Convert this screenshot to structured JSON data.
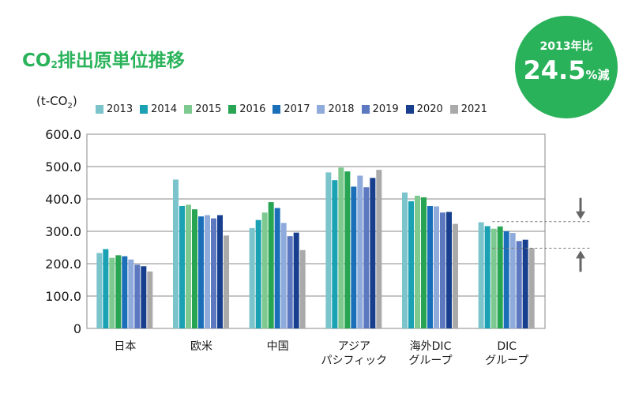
{
  "title": {
    "prefix": "CO",
    "sub": "2",
    "suffix": "排出原単位推移"
  },
  "badge": {
    "top": "2013年比",
    "value": "24.5",
    "suffix": "%減"
  },
  "unit_label": {
    "prefix": "(t-CO",
    "sub": "2",
    "suffix": ")"
  },
  "colors": {
    "2013": "#7cc4cc",
    "2014": "#1aa1b4",
    "2015": "#7dc98f",
    "2016": "#27a553",
    "2017": "#1a6fb8",
    "2018": "#8fabdc",
    "2019": "#5c78c0",
    "2020": "#173f8e",
    "2021": "#aaaaaa",
    "accent": "#2bb35b",
    "arrow": "#666666"
  },
  "chart_data": {
    "type": "bar",
    "categories": [
      [
        "日本"
      ],
      [
        "欧米"
      ],
      [
        "中国"
      ],
      [
        "アジア",
        "パシフィック"
      ],
      [
        "海外DIC",
        "グループ"
      ],
      [
        "DIC",
        "グループ"
      ]
    ],
    "series": [
      {
        "name": "2013",
        "values": [
          233,
          460,
          310,
          482,
          420,
          328
        ]
      },
      {
        "name": "2014",
        "values": [
          245,
          378,
          335,
          458,
          393,
          316
        ]
      },
      {
        "name": "2015",
        "values": [
          218,
          382,
          358,
          497,
          410,
          308
        ]
      },
      {
        "name": "2016",
        "values": [
          226,
          368,
          390,
          485,
          405,
          315
        ]
      },
      {
        "name": "2017",
        "values": [
          223,
          346,
          372,
          438,
          378,
          300
        ]
      },
      {
        "name": "2018",
        "values": [
          213,
          350,
          326,
          472,
          377,
          295
        ]
      },
      {
        "name": "2019",
        "values": [
          197,
          340,
          285,
          436,
          358,
          270
        ]
      },
      {
        "name": "2020",
        "values": [
          192,
          350,
          296,
          465,
          360,
          274
        ]
      },
      {
        "name": "2021",
        "values": [
          176,
          287,
          242,
          490,
          323,
          248
        ]
      }
    ],
    "y_ticks": [
      "0",
      "100.0",
      "200.0",
      "300.0",
      "400.0",
      "500.0",
      "600.0"
    ],
    "ylim": [
      0,
      600
    ],
    "grid": true,
    "legend": "top",
    "reference_lines": [
      330,
      248
    ]
  }
}
